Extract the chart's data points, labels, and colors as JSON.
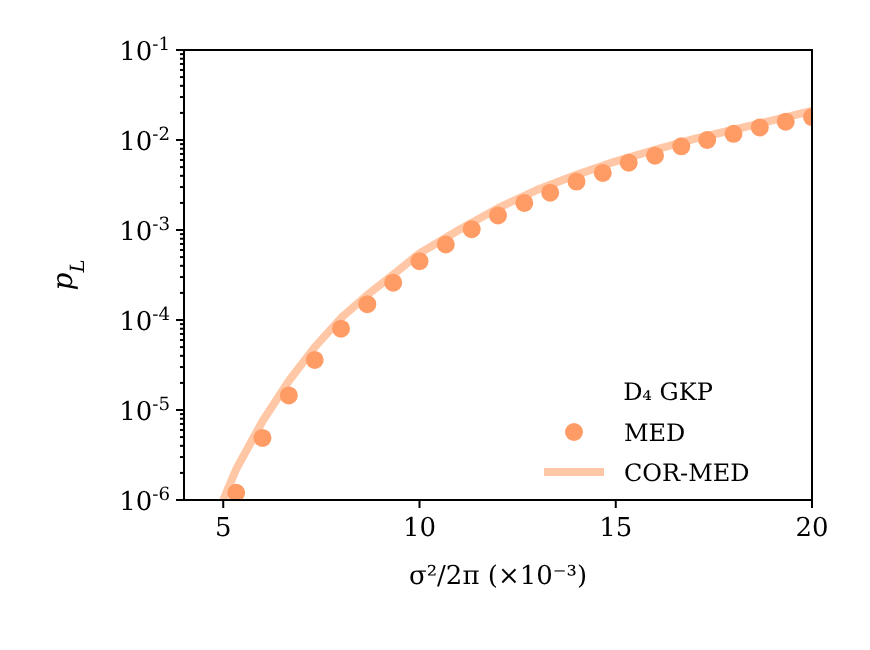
{
  "chart_data": {
    "type": "scatter",
    "xlabel": "σ²/2π (×10⁻³)",
    "ylabel": "p$_{L}$",
    "legend_title": "D₄ GKP",
    "legend": "bottom right",
    "log": "y",
    "grid": false,
    "xlim": [
      4,
      20
    ],
    "xticks": [
      5,
      10,
      15,
      20
    ],
    "ylim": [
      1e-06,
      0.1
    ],
    "yticks": [
      {
        "value": 1e-06,
        "label": "10$^{-6}$"
      },
      {
        "value": 2e-06,
        "label": null
      },
      {
        "value": 3e-06,
        "label": null
      },
      {
        "value": 4e-06,
        "label": null
      },
      {
        "value": 5e-06,
        "label": null
      },
      {
        "value": 6e-06,
        "label": null
      },
      {
        "value": 7e-06,
        "label": null
      },
      {
        "value": 8e-06,
        "label": null
      },
      {
        "value": 9e-06,
        "label": null
      },
      {
        "value": 1e-05,
        "label": "10$^{-5}$"
      },
      {
        "value": 2e-05,
        "label": null
      },
      {
        "value": 3e-05,
        "label": null
      },
      {
        "value": 4e-05,
        "label": null
      },
      {
        "value": 5e-05,
        "label": null
      },
      {
        "value": 6e-05,
        "label": null
      },
      {
        "value": 7e-05,
        "label": null
      },
      {
        "value": 8e-05,
        "label": null
      },
      {
        "value": 9e-05,
        "label": null
      },
      {
        "value": 0.0001,
        "label": "10$^{-4}$"
      },
      {
        "value": 0.0002,
        "label": null
      },
      {
        "value": 0.0003,
        "label": null
      },
      {
        "value": 0.0004,
        "label": null
      },
      {
        "value": 0.0005,
        "label": null
      },
      {
        "value": 0.0006,
        "label": null
      },
      {
        "value": 0.0007,
        "label": null
      },
      {
        "value": 0.0008,
        "label": null
      },
      {
        "value": 0.0009,
        "label": null
      },
      {
        "value": 0.001,
        "label": "10$^{-3}$"
      },
      {
        "value": 0.002,
        "label": null
      },
      {
        "value": 0.003,
        "label": null
      },
      {
        "value": 0.004,
        "label": null
      },
      {
        "value": 0.005,
        "label": null
      },
      {
        "value": 0.006,
        "label": null
      },
      {
        "value": 0.007,
        "label": null
      },
      {
        "value": 0.008,
        "label": null
      },
      {
        "value": 0.009,
        "label": null
      },
      {
        "value": 0.01,
        "label": "10$^{-2}$"
      },
      {
        "value": 0.02,
        "label": null
      },
      {
        "value": 0.03,
        "label": null
      },
      {
        "value": 0.04,
        "label": null
      },
      {
        "value": 0.05,
        "label": null
      },
      {
        "value": 0.06,
        "label": null
      },
      {
        "value": 0.07,
        "label": null
      },
      {
        "value": 0.08,
        "label": null
      },
      {
        "value": 0.09,
        "label": null
      },
      {
        "value": 0.1,
        "label": "10$^{-1}$"
      }
    ],
    "series": [
      {
        "name": "MED",
        "marker": "circle",
        "color": "#ff9c66",
        "x": [
          5.33,
          6,
          6.67,
          7.33,
          8,
          8.67,
          9.33,
          10,
          10.67,
          11.33,
          12,
          12.67,
          13.33,
          14,
          14.67,
          15.33,
          16,
          16.67,
          17.33,
          18,
          18.67,
          19.33,
          20
        ],
        "values": [
          1.2e-06,
          4.9e-06,
          1.45e-05,
          3.6e-05,
          8e-05,
          0.00015,
          0.00026,
          0.00045,
          0.00069,
          0.00102,
          0.00145,
          0.002,
          0.0026,
          0.00345,
          0.0043,
          0.0056,
          0.0067,
          0.0085,
          0.01,
          0.0117,
          0.0138,
          0.016,
          0.018
        ]
      },
      {
        "name": "COR-MED",
        "type": "line",
        "line_style": "solid",
        "color": "#ffc7a6",
        "x": [
          5,
          5.33,
          6,
          6.67,
          7.33,
          8,
          8.67,
          9.33,
          10,
          11,
          12,
          13,
          14,
          15,
          16,
          17,
          18,
          19,
          20
        ],
        "values": [
          1e-06,
          2.2e-06,
          7.5e-06,
          2.1e-05,
          5e-05,
          0.000105,
          0.00019,
          0.00032,
          0.00055,
          0.001,
          0.00175,
          0.0028,
          0.0041,
          0.0058,
          0.0078,
          0.0103,
          0.013,
          0.0165,
          0.021
        ]
      }
    ]
  }
}
